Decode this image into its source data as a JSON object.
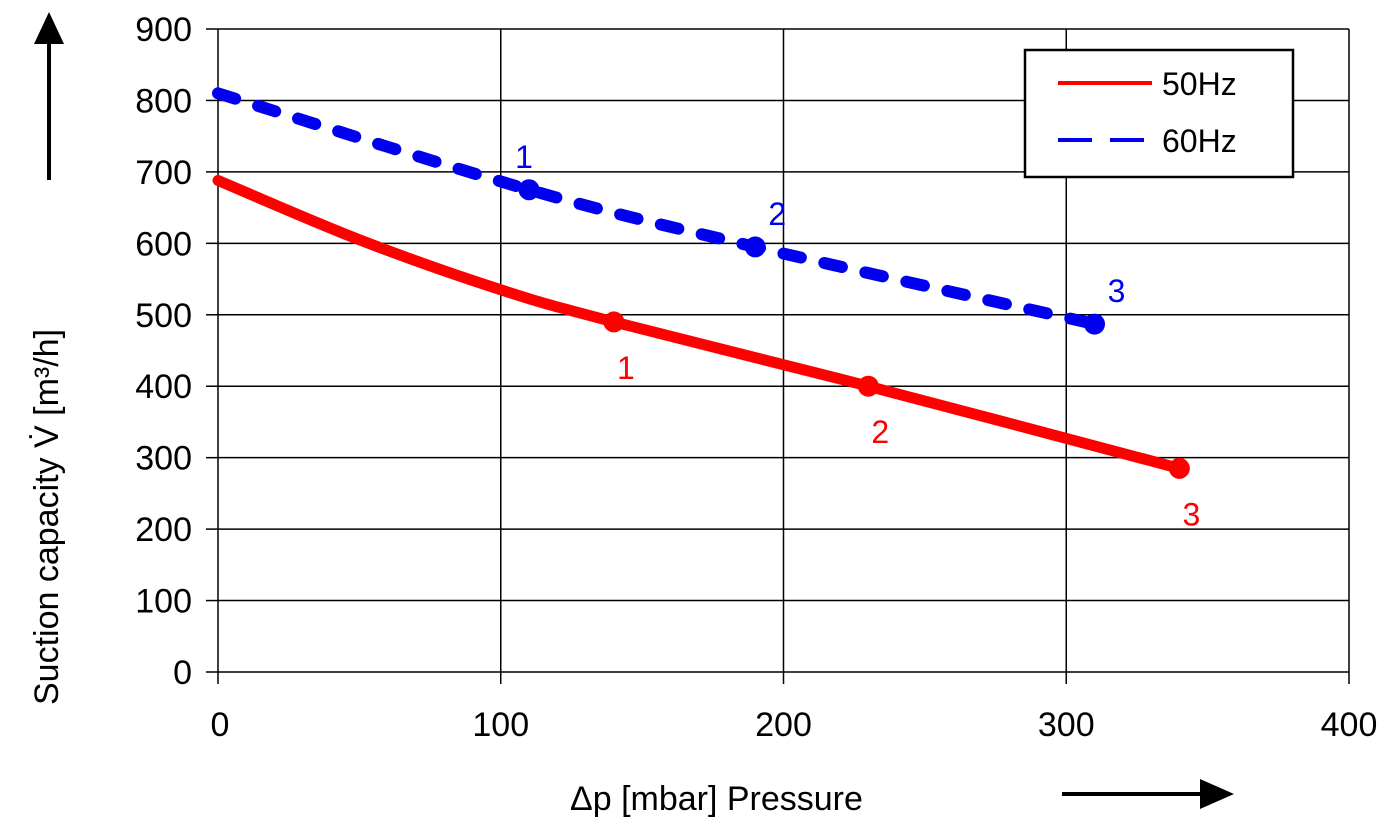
{
  "chart_data": {
    "type": "line",
    "title": "",
    "xlabel": "Δp [mbar]  Pressure",
    "ylabel": "Suction capacity V̇ [m³/h]",
    "xlim": [
      0,
      400
    ],
    "ylim": [
      0,
      900
    ],
    "x_ticks": [
      0,
      100,
      200,
      300,
      400
    ],
    "y_ticks": [
      0,
      100,
      200,
      300,
      400,
      500,
      600,
      700,
      800,
      900
    ],
    "grid": true,
    "legend_position": "top-right",
    "series": [
      {
        "name": "50Hz",
        "color": "#ff0000",
        "style": "solid",
        "curve": [
          [
            0,
            688
          ],
          [
            50,
            605
          ],
          [
            100,
            535
          ],
          [
            140,
            490
          ],
          [
            230,
            400
          ],
          [
            340,
            285
          ]
        ],
        "points": [
          {
            "label": "1",
            "x": 140,
            "y": 490
          },
          {
            "label": "2",
            "x": 230,
            "y": 400
          },
          {
            "label": "3",
            "x": 340,
            "y": 285
          }
        ]
      },
      {
        "name": "60Hz",
        "color": "#0000ee",
        "style": "dashed",
        "curve": [
          [
            0,
            810
          ],
          [
            110,
            675
          ],
          [
            190,
            595
          ],
          [
            310,
            487
          ]
        ],
        "points": [
          {
            "label": "1",
            "x": 110,
            "y": 675
          },
          {
            "label": "2",
            "x": 190,
            "y": 595
          },
          {
            "label": "3",
            "x": 310,
            "y": 487
          }
        ]
      }
    ]
  }
}
